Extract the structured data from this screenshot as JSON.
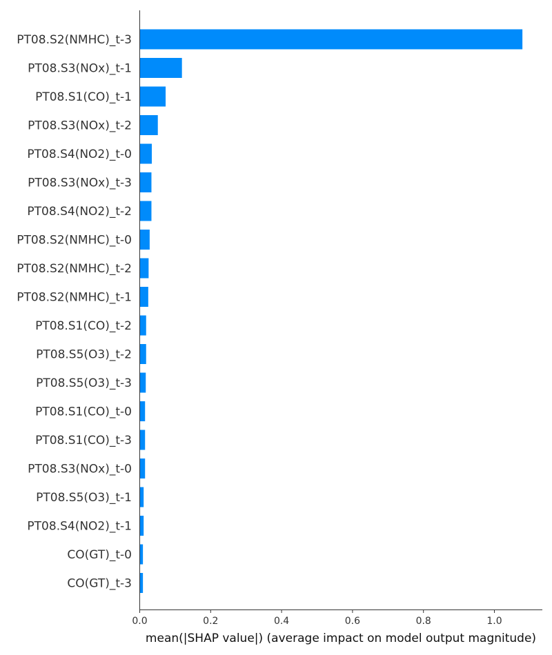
{
  "chart_data": {
    "type": "bar",
    "orientation": "horizontal",
    "title": "",
    "xlabel": "mean(|SHAP value|) (average impact on model output magnitude)",
    "ylabel": "",
    "xlim": [
      0,
      1.14
    ],
    "xticks": [
      "0.0",
      "0.2",
      "0.4",
      "0.6",
      "0.8",
      "1.0"
    ],
    "grid": false,
    "legend": "none",
    "bar_color": "#008bfb",
    "categories": [
      "PT08.S2(NMHC)_t-3",
      "PT08.S3(NOx)_t-1",
      "PT08.S1(CO)_t-1",
      "PT08.S3(NOx)_t-2",
      "PT08.S4(NO2)_t-0",
      "PT08.S3(NOx)_t-3",
      "PT08.S4(NO2)_t-2",
      "PT08.S2(NMHC)_t-0",
      "PT08.S2(NMHC)_t-2",
      "PT08.S2(NMHC)_t-1",
      "PT08.S1(CO)_t-2",
      "PT08.S5(O3)_t-2",
      "PT08.S5(O3)_t-3",
      "PT08.S1(CO)_t-0",
      "PT08.S1(CO)_t-3",
      "PT08.S3(NOx)_t-0",
      "PT08.S5(O3)_t-1",
      "PT08.S4(NO2)_t-1",
      "CO(GT)_t-0",
      "CO(GT)_t-3"
    ],
    "values": [
      1.08,
      0.12,
      0.074,
      0.052,
      0.035,
      0.034,
      0.034,
      0.029,
      0.026,
      0.025,
      0.019,
      0.019,
      0.018,
      0.016,
      0.016,
      0.016,
      0.012,
      0.012,
      0.01,
      0.01
    ]
  }
}
